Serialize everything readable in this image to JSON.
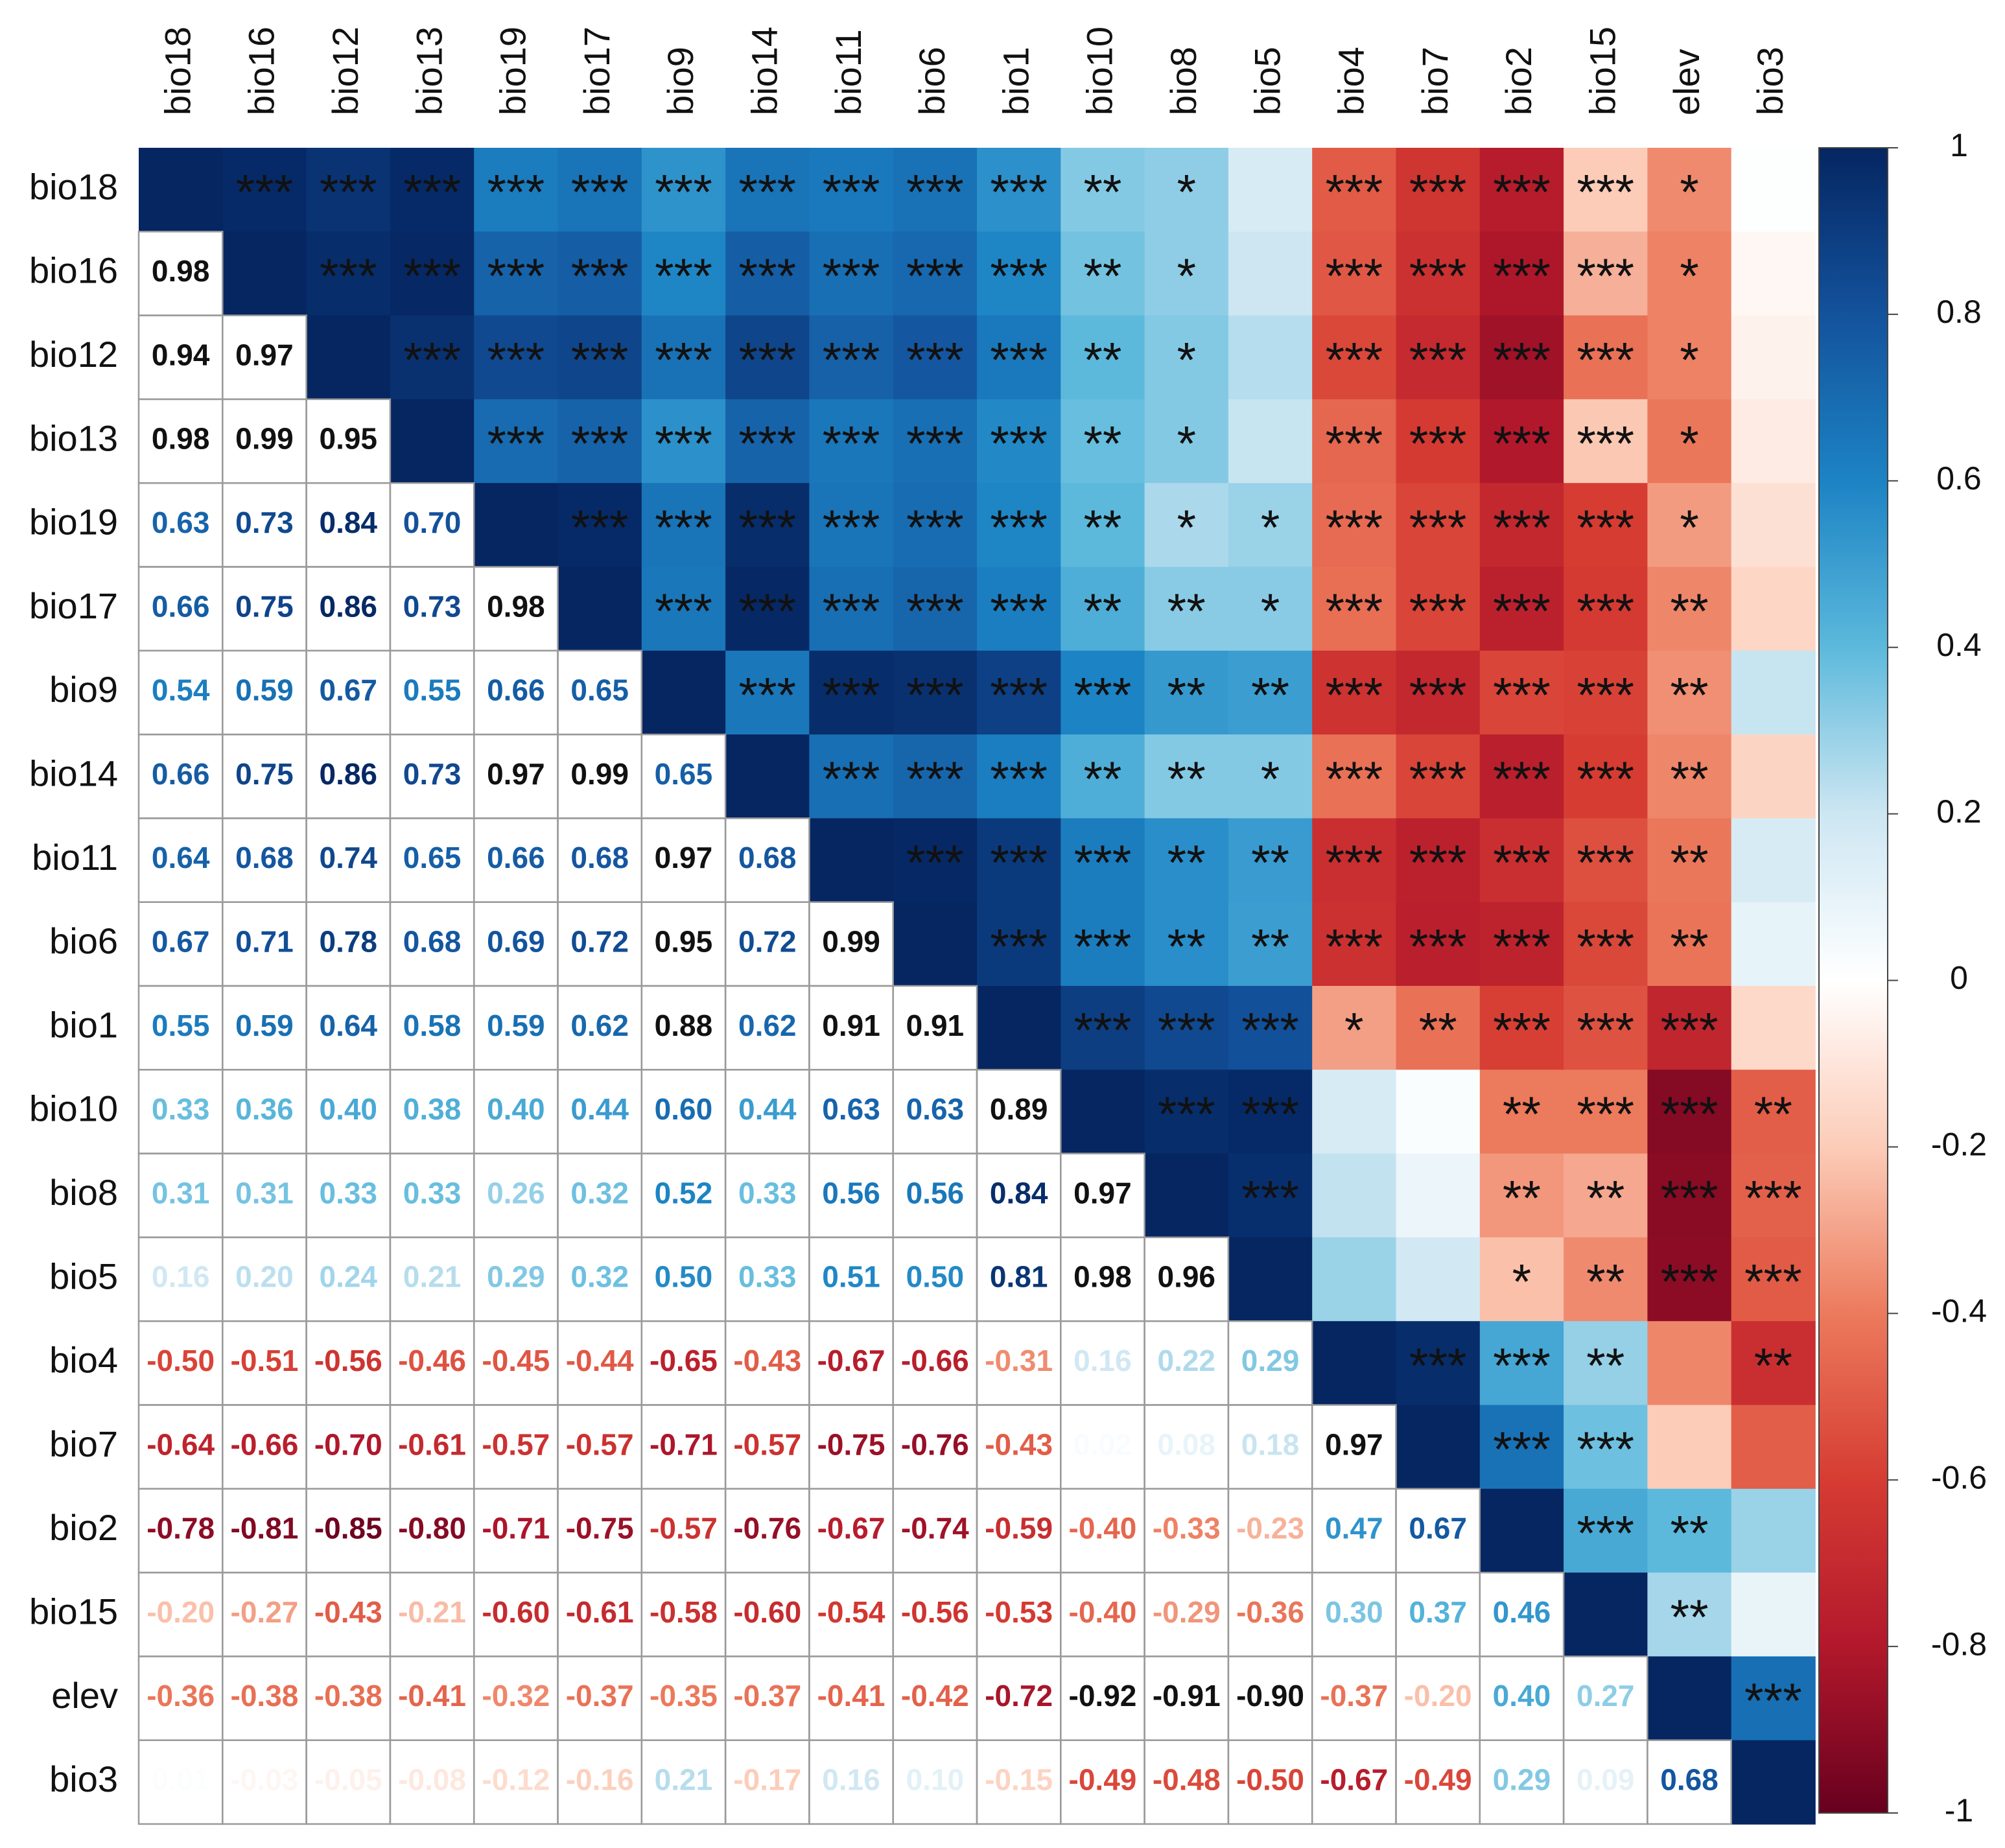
{
  "chart_data": {
    "type": "heatmap",
    "title": "",
    "variables": [
      "bio18",
      "bio16",
      "bio12",
      "bio13",
      "bio19",
      "bio17",
      "bio9",
      "bio14",
      "bio11",
      "bio6",
      "bio1",
      "bio10",
      "bio8",
      "bio5",
      "bio4",
      "bio7",
      "bio2",
      "bio15",
      "elev",
      "bio3"
    ],
    "lower_triangle_values": [
      [],
      [
        "0.98"
      ],
      [
        "0.94",
        "0.97"
      ],
      [
        "0.98",
        "0.99",
        "0.95"
      ],
      [
        "0.63",
        "0.73",
        "0.84",
        "0.70"
      ],
      [
        "0.66",
        "0.75",
        "0.86",
        "0.73",
        "0.98"
      ],
      [
        "0.54",
        "0.59",
        "0.67",
        "0.55",
        "0.66",
        "0.65"
      ],
      [
        "0.66",
        "0.75",
        "0.86",
        "0.73",
        "0.97",
        "0.99",
        "0.65"
      ],
      [
        "0.64",
        "0.68",
        "0.74",
        "0.65",
        "0.66",
        "0.68",
        "0.97",
        "0.68"
      ],
      [
        "0.67",
        "0.71",
        "0.78",
        "0.68",
        "0.69",
        "0.72",
        "0.95",
        "0.72",
        "0.99"
      ],
      [
        "0.55",
        "0.59",
        "0.64",
        "0.58",
        "0.59",
        "0.62",
        "0.88",
        "0.62",
        "0.91",
        "0.91"
      ],
      [
        "0.33",
        "0.36",
        "0.40",
        "0.38",
        "0.40",
        "0.44",
        "0.60",
        "0.44",
        "0.63",
        "0.63",
        "0.89"
      ],
      [
        "0.31",
        "0.31",
        "0.33",
        "0.33",
        "0.26",
        "0.32",
        "0.52",
        "0.33",
        "0.56",
        "0.56",
        "0.84",
        "0.97"
      ],
      [
        "0.16",
        "0.20",
        "0.24",
        "0.21",
        "0.29",
        "0.32",
        "0.50",
        "0.33",
        "0.51",
        "0.50",
        "0.81",
        "0.98",
        "0.96"
      ],
      [
        "-0.50",
        "-0.51",
        "-0.56",
        "-0.46",
        "-0.45",
        "-0.44",
        "-0.65",
        "-0.43",
        "-0.67",
        "-0.66",
        "-0.31",
        "0.16",
        "0.22",
        "0.29"
      ],
      [
        "-0.64",
        "-0.66",
        "-0.70",
        "-0.61",
        "-0.57",
        "-0.57",
        "-0.71",
        "-0.57",
        "-0.75",
        "-0.76",
        "-0.43",
        "0.02",
        "0.08",
        "0.18",
        "0.97"
      ],
      [
        "-0.78",
        "-0.81",
        "-0.85",
        "-0.80",
        "-0.71",
        "-0.75",
        "-0.57",
        "-0.76",
        "-0.67",
        "-0.74",
        "-0.59",
        "-0.40",
        "-0.33",
        "-0.23",
        "0.47",
        "0.67"
      ],
      [
        "-0.20",
        "-0.27",
        "-0.43",
        "-0.21",
        "-0.60",
        "-0.61",
        "-0.58",
        "-0.60",
        "-0.54",
        "-0.56",
        "-0.53",
        "-0.40",
        "-0.29",
        "-0.36",
        "0.30",
        "0.37",
        "0.46"
      ],
      [
        "-0.36",
        "-0.38",
        "-0.38",
        "-0.41",
        "-0.32",
        "-0.37",
        "-0.35",
        "-0.37",
        "-0.41",
        "-0.42",
        "-0.72",
        "-0.92",
        "-0.91",
        "-0.90",
        "-0.37",
        "-0.20",
        "0.40",
        "0.27"
      ],
      [
        "0.01",
        "-0.03",
        "-0.05",
        "-0.08",
        "-0.12",
        "-0.16",
        "0.21",
        "-0.17",
        "0.16",
        "0.10",
        "-0.15",
        "-0.49",
        "-0.48",
        "-0.50",
        "-0.67",
        "-0.49",
        "0.29",
        "0.09",
        "0.68"
      ]
    ],
    "significance_overrides": [
      {
        "row": 0,
        "col": 11,
        "stars": "**"
      },
      {
        "row": 0,
        "col": 12,
        "stars": "*"
      },
      {
        "row": 0,
        "col": 13,
        "stars": ""
      },
      {
        "row": 0,
        "col": 18,
        "stars": "*"
      },
      {
        "row": 0,
        "col": 19,
        "stars": ""
      },
      {
        "row": 1,
        "col": 11,
        "stars": "**"
      },
      {
        "row": 1,
        "col": 12,
        "stars": "*"
      },
      {
        "row": 1,
        "col": 13,
        "stars": ""
      },
      {
        "row": 1,
        "col": 18,
        "stars": "*"
      },
      {
        "row": 1,
        "col": 19,
        "stars": ""
      },
      {
        "row": 2,
        "col": 11,
        "stars": "**"
      },
      {
        "row": 2,
        "col": 12,
        "stars": "*"
      },
      {
        "row": 2,
        "col": 13,
        "stars": ""
      },
      {
        "row": 2,
        "col": 18,
        "stars": "*"
      },
      {
        "row": 2,
        "col": 19,
        "stars": ""
      },
      {
        "row": 3,
        "col": 11,
        "stars": "**"
      },
      {
        "row": 3,
        "col": 12,
        "stars": "*"
      },
      {
        "row": 3,
        "col": 13,
        "stars": ""
      },
      {
        "row": 3,
        "col": 18,
        "stars": "*"
      },
      {
        "row": 3,
        "col": 19,
        "stars": ""
      },
      {
        "row": 4,
        "col": 11,
        "stars": "**"
      },
      {
        "row": 4,
        "col": 12,
        "stars": "*"
      },
      {
        "row": 4,
        "col": 13,
        "stars": "*"
      },
      {
        "row": 4,
        "col": 18,
        "stars": "*"
      },
      {
        "row": 4,
        "col": 19,
        "stars": ""
      },
      {
        "row": 5,
        "col": 11,
        "stars": "**"
      },
      {
        "row": 5,
        "col": 12,
        "stars": "**"
      },
      {
        "row": 5,
        "col": 13,
        "stars": "*"
      },
      {
        "row": 5,
        "col": 18,
        "stars": "**"
      },
      {
        "row": 5,
        "col": 19,
        "stars": ""
      },
      {
        "row": 6,
        "col": 12,
        "stars": "**"
      },
      {
        "row": 6,
        "col": 13,
        "stars": "**"
      },
      {
        "row": 6,
        "col": 18,
        "stars": "**"
      },
      {
        "row": 6,
        "col": 19,
        "stars": ""
      },
      {
        "row": 7,
        "col": 11,
        "stars": "**"
      },
      {
        "row": 7,
        "col": 12,
        "stars": "**"
      },
      {
        "row": 7,
        "col": 13,
        "stars": "*"
      },
      {
        "row": 7,
        "col": 18,
        "stars": "**"
      },
      {
        "row": 7,
        "col": 19,
        "stars": ""
      },
      {
        "row": 8,
        "col": 12,
        "stars": "**"
      },
      {
        "row": 8,
        "col": 13,
        "stars": "**"
      },
      {
        "row": 8,
        "col": 18,
        "stars": "**"
      },
      {
        "row": 8,
        "col": 19,
        "stars": ""
      },
      {
        "row": 9,
        "col": 12,
        "stars": "**"
      },
      {
        "row": 9,
        "col": 13,
        "stars": "**"
      },
      {
        "row": 9,
        "col": 18,
        "stars": "**"
      },
      {
        "row": 9,
        "col": 19,
        "stars": ""
      },
      {
        "row": 10,
        "col": 14,
        "stars": "*"
      },
      {
        "row": 10,
        "col": 15,
        "stars": "**"
      },
      {
        "row": 10,
        "col": 19,
        "stars": ""
      },
      {
        "row": 11,
        "col": 14,
        "stars": ""
      },
      {
        "row": 11,
        "col": 15,
        "stars": ""
      },
      {
        "row": 11,
        "col": 16,
        "stars": "**"
      },
      {
        "row": 11,
        "col": 19,
        "stars": "**"
      },
      {
        "row": 12,
        "col": 14,
        "stars": ""
      },
      {
        "row": 12,
        "col": 15,
        "stars": ""
      },
      {
        "row": 12,
        "col": 16,
        "stars": "**"
      },
      {
        "row": 12,
        "col": 17,
        "stars": "**"
      },
      {
        "row": 13,
        "col": 14,
        "stars": ""
      },
      {
        "row": 13,
        "col": 15,
        "stars": ""
      },
      {
        "row": 13,
        "col": 16,
        "stars": "*"
      },
      {
        "row": 13,
        "col": 17,
        "stars": "**"
      },
      {
        "row": 14,
        "col": 17,
        "stars": "**"
      },
      {
        "row": 14,
        "col": 18,
        "stars": ""
      },
      {
        "row": 14,
        "col": 19,
        "stars": "**"
      },
      {
        "row": 15,
        "col": 18,
        "stars": ""
      },
      {
        "row": 15,
        "col": 19,
        "stars": ""
      },
      {
        "row": 16,
        "col": 18,
        "stars": "**"
      },
      {
        "row": 16,
        "col": 19,
        "stars": ""
      },
      {
        "row": 17,
        "col": 18,
        "stars": "**"
      },
      {
        "row": 17,
        "col": 19,
        "stars": ""
      }
    ],
    "default_upper_stars": "***",
    "colorbar": {
      "ticks": [
        "1",
        "0.8",
        "0.6",
        "0.4",
        "0.2",
        "0",
        "-0.2",
        "-0.4",
        "-0.6",
        "-0.8",
        "-1"
      ],
      "range": [
        -1,
        1
      ]
    },
    "colors": {
      "strong_negative": "#67001f",
      "negative": "#d6604d",
      "neutral": "#ffffff",
      "positive": "#4393c3",
      "strong_positive": "#053061"
    }
  }
}
